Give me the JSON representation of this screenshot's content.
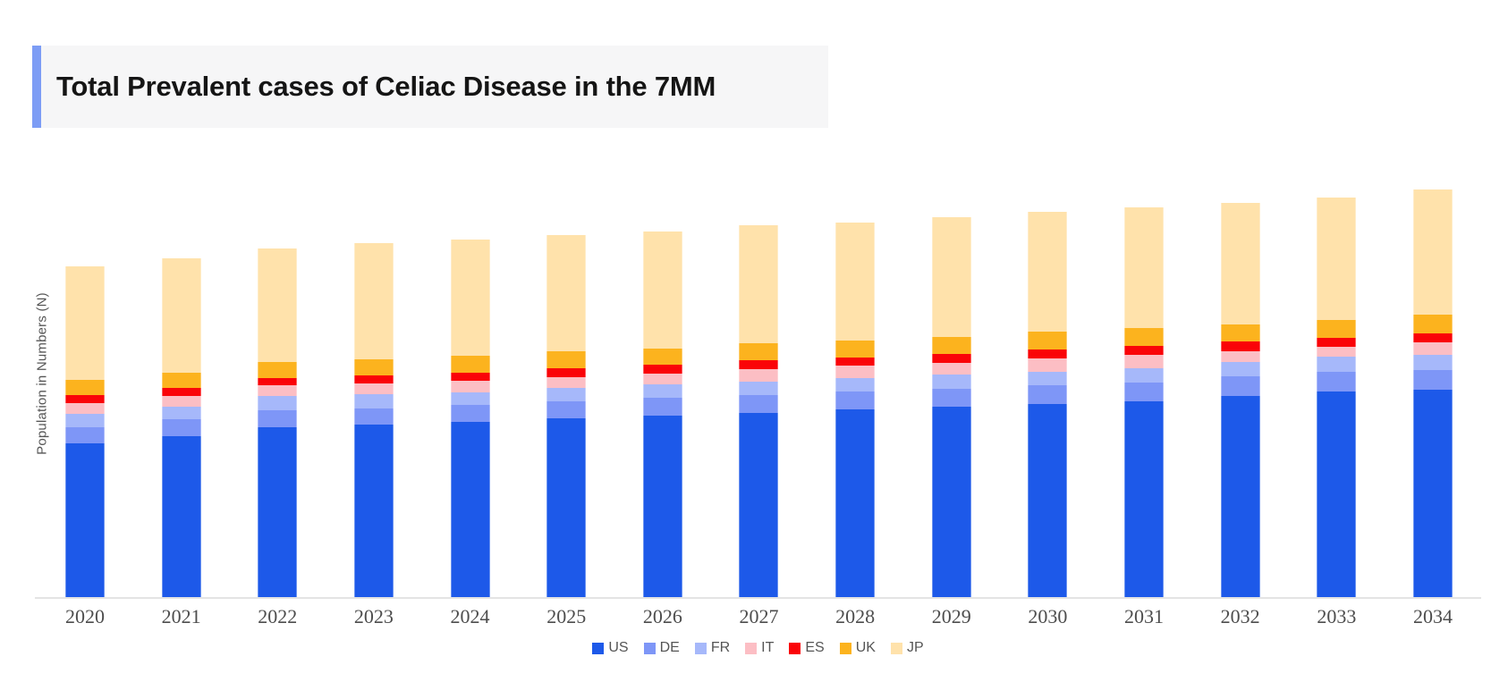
{
  "header": {
    "title": "Total Prevalent cases of Celiac Disease in the 7MM"
  },
  "chart_data": {
    "type": "bar",
    "stacked": true,
    "title": "Total Prevalent cases of Celiac Disease in the 7MM",
    "xlabel": "",
    "ylabel": "Population in Numbers (N)",
    "grid": false,
    "legend_position": "bottom",
    "y_axis_tick_labels": "none shown",
    "value_units": "relative stacked-segment heights in screen pixels (chart displays no numeric y-axis scale)",
    "categories": [
      "2020",
      "2021",
      "2022",
      "2023",
      "2024",
      "2025",
      "2026",
      "2027",
      "2028",
      "2029",
      "2030",
      "2031",
      "2032",
      "2033",
      "2034"
    ],
    "series": [
      {
        "name": "US",
        "color": "#1d59e9",
        "values": [
          172,
          180,
          190,
          193,
          196,
          200,
          203,
          206,
          210,
          213,
          216,
          219,
          225,
          230,
          232
        ]
      },
      {
        "name": "DE",
        "color": "#7e96f7",
        "values": [
          18,
          19,
          19,
          18,
          19,
          19,
          20,
          20,
          20,
          20,
          21,
          21,
          22,
          22,
          22
        ]
      },
      {
        "name": "FR",
        "color": "#a6b8fa",
        "values": [
          15,
          14,
          16,
          16,
          14,
          15,
          15,
          15,
          15,
          16,
          15,
          16,
          16,
          17,
          17
        ]
      },
      {
        "name": "IT",
        "color": "#fcbec4",
        "values": [
          12,
          12,
          12,
          12,
          13,
          12,
          12,
          14,
          14,
          13,
          15,
          15,
          12,
          11,
          14
        ]
      },
      {
        "name": "ES",
        "color": "#fa0408",
        "values": [
          9,
          9,
          8,
          9,
          9,
          10,
          10,
          10,
          9,
          10,
          10,
          10,
          11,
          10,
          10
        ]
      },
      {
        "name": "UK",
        "color": "#fcb31e",
        "values": [
          17,
          17,
          18,
          18,
          19,
          19,
          18,
          19,
          19,
          19,
          20,
          20,
          19,
          20,
          21
        ]
      },
      {
        "name": "JP",
        "color": "#ffe2ab",
        "values": [
          127,
          128,
          127,
          130,
          130,
          130,
          131,
          132,
          132,
          134,
          134,
          135,
          136,
          137,
          140
        ]
      }
    ],
    "legend": [
      "US",
      "DE",
      "FR",
      "IT",
      "ES",
      "UK",
      "JP"
    ],
    "accent_colors": {
      "title_accent_bar": "#7c9cf5",
      "title_background": "#f6f6f7",
      "axis_line": "#e4e4e4",
      "axis_text": "#4d4d4d",
      "label_text": "#555555"
    }
  }
}
